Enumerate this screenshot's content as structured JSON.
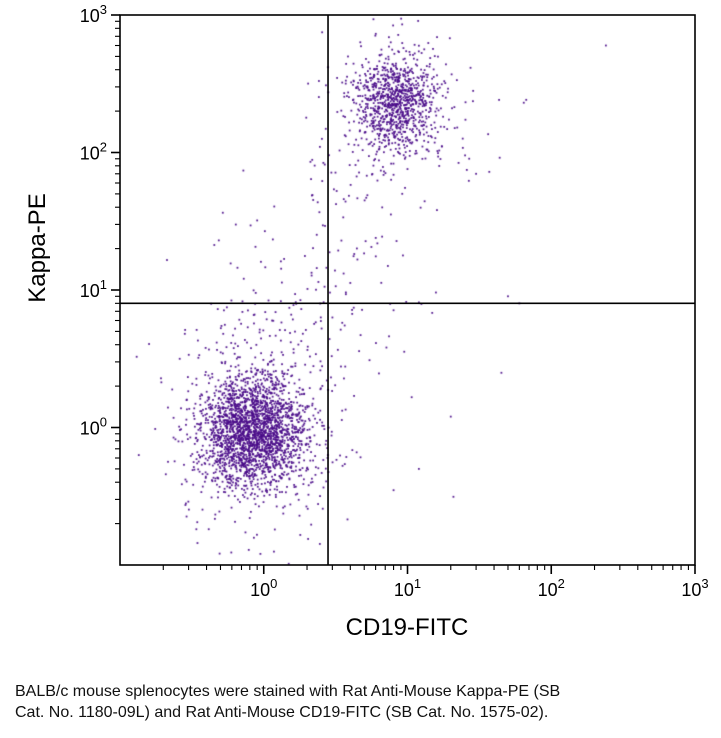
{
  "figure": {
    "caption_lines": [
      "BALB/c mouse splenocytes were stained with Rat Anti-Mouse Kappa-PE (SB",
      "Cat. No. 1180-09L) and Rat Anti-Mouse CD19-FITC (SB Cat. No. 1575-02)."
    ]
  },
  "chart_data": {
    "type": "scatter",
    "title": "",
    "xlabel": "CD19-FITC",
    "ylabel": "Kappa-PE",
    "x_scale": "log",
    "y_scale": "log",
    "x_log_range": [
      -1,
      3
    ],
    "y_log_range": [
      -1,
      3
    ],
    "tick_label_base": "10",
    "x_tick_exponents": [
      0,
      1,
      2,
      3
    ],
    "y_tick_exponents": [
      0,
      1,
      2,
      3
    ],
    "grid": false,
    "legend": false,
    "dot_color": "#4b0d8a",
    "axis_color": "#000000",
    "quadrant_gate": {
      "x_value": 2.8,
      "y_value": 8
    },
    "populations": [
      {
        "name": "double-negative-core",
        "log_center": [
          -0.08,
          -0.03
        ],
        "log_sigma": [
          0.18,
          0.2
        ],
        "count": 2100
      },
      {
        "name": "double-negative-halo",
        "log_center": [
          -0.06,
          0.0
        ],
        "log_sigma": [
          0.32,
          0.38
        ],
        "count": 420
      },
      {
        "name": "double-negative-upper-tail",
        "log_center": [
          -0.1,
          0.7
        ],
        "log_sigma": [
          0.25,
          0.45
        ],
        "count": 80
      },
      {
        "name": "double-positive-core",
        "log_center": [
          0.92,
          2.37
        ],
        "log_sigma": [
          0.14,
          0.16
        ],
        "count": 800
      },
      {
        "name": "double-positive-halo",
        "log_center": [
          0.93,
          2.32
        ],
        "log_sigma": [
          0.26,
          0.3
        ],
        "count": 280
      },
      {
        "name": "gate-column",
        "log_center": [
          0.43,
          1.5
        ],
        "log_sigma": [
          0.08,
          0.75
        ],
        "count": 50
      },
      {
        "name": "transition",
        "log_center": [
          0.6,
          1.1
        ],
        "log_sigma": [
          0.3,
          0.55
        ],
        "count": 80
      }
    ],
    "outlier_points": [
      [
        240,
        600
      ],
      [
        50,
        9
      ],
      [
        30,
        70
      ],
      [
        12,
        0.5
      ],
      [
        20,
        1.2
      ],
      [
        45,
        2.5
      ],
      [
        8,
        0.35
      ],
      [
        60,
        8
      ]
    ]
  }
}
